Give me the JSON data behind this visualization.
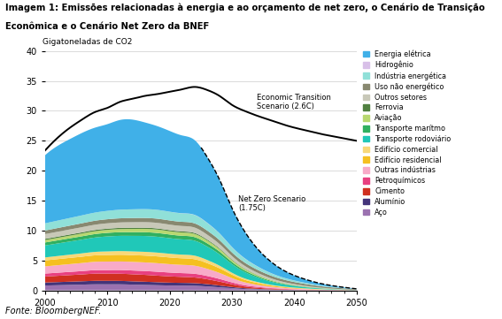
{
  "title_line1": "Imagem 1: Emissões relacionadas à energia e ao orçamento de net zero, o Cenário de Transição",
  "title_line2": "Econômica e o Cenário Net Zero da BNEF",
  "ylabel": "Gigatoneladas de CO2",
  "source": "Fonte: BloombergNEF.",
  "years": [
    2000,
    2002,
    2004,
    2006,
    2008,
    2010,
    2012,
    2014,
    2016,
    2018,
    2020,
    2022,
    2024,
    2026,
    2028,
    2030,
    2032,
    2034,
    2036,
    2038,
    2040,
    2042,
    2044,
    2046,
    2048,
    2050
  ],
  "sectors": [
    "Aço",
    "Alumínio",
    "Cimento",
    "Petroquímicos",
    "Outras indústrias",
    "Edifício residencial",
    "Edifício comercial",
    "Transporte rodoviário",
    "Transporte marítmo",
    "Aviação",
    "Ferrovia",
    "Outros setores",
    "Uso não energético",
    "Indústria energética",
    "Hidrogênio",
    "Energia elétrica"
  ],
  "colors": [
    "#9b72b0",
    "#44347a",
    "#d03020",
    "#e84080",
    "#f8aac8",
    "#f5c020",
    "#f8d878",
    "#20c8b8",
    "#30b060",
    "#b8d870",
    "#508040",
    "#c8c8b8",
    "#888870",
    "#90e0d8",
    "#d8c0e8",
    "#40b0e8"
  ],
  "stack_data": {
    "Aço": [
      0.8,
      0.85,
      0.9,
      0.95,
      1.0,
      1.0,
      1.0,
      0.95,
      0.9,
      0.85,
      0.8,
      0.78,
      0.75,
      0.65,
      0.5,
      0.35,
      0.22,
      0.15,
      0.1,
      0.06,
      0.04,
      0.03,
      0.02,
      0.015,
      0.01,
      0.005
    ],
    "Alumínio": [
      0.5,
      0.52,
      0.54,
      0.56,
      0.58,
      0.58,
      0.57,
      0.55,
      0.53,
      0.5,
      0.48,
      0.46,
      0.44,
      0.38,
      0.3,
      0.2,
      0.13,
      0.09,
      0.06,
      0.04,
      0.025,
      0.015,
      0.01,
      0.007,
      0.004,
      0.002
    ],
    "Cimento": [
      1.0,
      1.05,
      1.1,
      1.15,
      1.2,
      1.2,
      1.2,
      1.18,
      1.15,
      1.1,
      1.05,
      1.0,
      0.95,
      0.82,
      0.65,
      0.45,
      0.28,
      0.18,
      0.12,
      0.08,
      0.05,
      0.035,
      0.02,
      0.012,
      0.007,
      0.003
    ],
    "Petroquímicos": [
      0.5,
      0.52,
      0.54,
      0.56,
      0.58,
      0.6,
      0.62,
      0.63,
      0.64,
      0.65,
      0.64,
      0.63,
      0.62,
      0.55,
      0.45,
      0.32,
      0.22,
      0.16,
      0.11,
      0.08,
      0.055,
      0.04,
      0.025,
      0.015,
      0.008,
      0.003
    ],
    "Outras indústrias": [
      1.2,
      1.25,
      1.3,
      1.35,
      1.4,
      1.42,
      1.43,
      1.44,
      1.44,
      1.43,
      1.4,
      1.38,
      1.35,
      1.2,
      1.0,
      0.72,
      0.5,
      0.36,
      0.25,
      0.17,
      0.12,
      0.085,
      0.055,
      0.035,
      0.02,
      0.008
    ],
    "Edifício residencial": [
      1.0,
      1.02,
      1.04,
      1.06,
      1.08,
      1.1,
      1.12,
      1.13,
      1.14,
      1.14,
      1.12,
      1.1,
      1.08,
      0.95,
      0.78,
      0.58,
      0.42,
      0.3,
      0.21,
      0.15,
      0.105,
      0.07,
      0.045,
      0.028,
      0.016,
      0.007
    ],
    "Edifício comercial": [
      0.5,
      0.52,
      0.54,
      0.56,
      0.58,
      0.6,
      0.61,
      0.62,
      0.63,
      0.63,
      0.62,
      0.61,
      0.6,
      0.53,
      0.44,
      0.32,
      0.23,
      0.17,
      0.12,
      0.085,
      0.06,
      0.04,
      0.025,
      0.015,
      0.008,
      0.003
    ],
    "Transporte rodoviário": [
      2.0,
      2.1,
      2.2,
      2.3,
      2.4,
      2.5,
      2.55,
      2.6,
      2.65,
      2.65,
      2.6,
      2.55,
      2.5,
      2.25,
      1.9,
      1.45,
      1.08,
      0.78,
      0.55,
      0.38,
      0.27,
      0.18,
      0.115,
      0.07,
      0.04,
      0.015
    ],
    "Transporte marítmo": [
      0.5,
      0.52,
      0.54,
      0.56,
      0.58,
      0.6,
      0.61,
      0.62,
      0.63,
      0.63,
      0.62,
      0.61,
      0.6,
      0.54,
      0.46,
      0.35,
      0.27,
      0.2,
      0.15,
      0.11,
      0.08,
      0.06,
      0.04,
      0.025,
      0.014,
      0.006
    ],
    "Aviação": [
      0.4,
      0.42,
      0.44,
      0.46,
      0.48,
      0.5,
      0.52,
      0.54,
      0.56,
      0.57,
      0.55,
      0.54,
      0.53,
      0.48,
      0.41,
      0.32,
      0.24,
      0.18,
      0.13,
      0.09,
      0.065,
      0.045,
      0.03,
      0.018,
      0.01,
      0.004
    ],
    "Ferrovia": [
      0.2,
      0.2,
      0.2,
      0.2,
      0.2,
      0.2,
      0.2,
      0.2,
      0.19,
      0.19,
      0.18,
      0.18,
      0.17,
      0.15,
      0.13,
      0.1,
      0.075,
      0.055,
      0.04,
      0.028,
      0.02,
      0.014,
      0.009,
      0.005,
      0.003,
      0.001
    ],
    "Outros setores": [
      0.8,
      0.82,
      0.84,
      0.86,
      0.88,
      0.9,
      0.91,
      0.92,
      0.93,
      0.93,
      0.92,
      0.91,
      0.9,
      0.82,
      0.72,
      0.58,
      0.46,
      0.36,
      0.27,
      0.2,
      0.15,
      0.11,
      0.075,
      0.048,
      0.028,
      0.012
    ],
    "Uso não energético": [
      0.6,
      0.62,
      0.64,
      0.66,
      0.67,
      0.68,
      0.69,
      0.7,
      0.7,
      0.7,
      0.7,
      0.7,
      0.7,
      0.68,
      0.65,
      0.6,
      0.55,
      0.5,
      0.45,
      0.4,
      0.35,
      0.3,
      0.25,
      0.2,
      0.15,
      0.1
    ],
    "Indústria energética": [
      1.2,
      1.24,
      1.28,
      1.32,
      1.36,
      1.4,
      1.44,
      1.46,
      1.48,
      1.48,
      1.45,
      1.42,
      1.4,
      1.28,
      1.1,
      0.88,
      0.7,
      0.55,
      0.42,
      0.32,
      0.24,
      0.18,
      0.12,
      0.078,
      0.045,
      0.018
    ],
    "Hidrogênio": [
      0.0,
      0.0,
      0.0,
      0.0,
      0.0,
      0.0,
      0.0,
      0.0,
      0.0,
      0.0,
      0.01,
      0.02,
      0.03,
      0.04,
      0.04,
      0.04,
      0.035,
      0.03,
      0.025,
      0.02,
      0.015,
      0.01,
      0.007,
      0.004,
      0.002,
      0.001
    ],
    "Energia elétrica": [
      11.4,
      12.5,
      13.2,
      13.8,
      14.2,
      14.5,
      15.0,
      15.0,
      14.5,
      14.0,
      13.5,
      13.0,
      12.5,
      11.0,
      9.0,
      6.5,
      4.5,
      3.0,
      2.0,
      1.3,
      0.85,
      0.55,
      0.35,
      0.22,
      0.13,
      0.06
    ]
  },
  "ets_line": [
    23.4,
    25.5,
    27.2,
    28.6,
    29.8,
    30.5,
    31.5,
    32.0,
    32.5,
    32.8,
    33.2,
    33.6,
    34.0,
    33.5,
    32.5,
    31.0,
    30.0,
    29.2,
    28.5,
    27.8,
    27.2,
    26.7,
    26.2,
    25.8,
    25.4,
    25.0
  ],
  "split_year": 2025,
  "background_color": "#ffffff"
}
